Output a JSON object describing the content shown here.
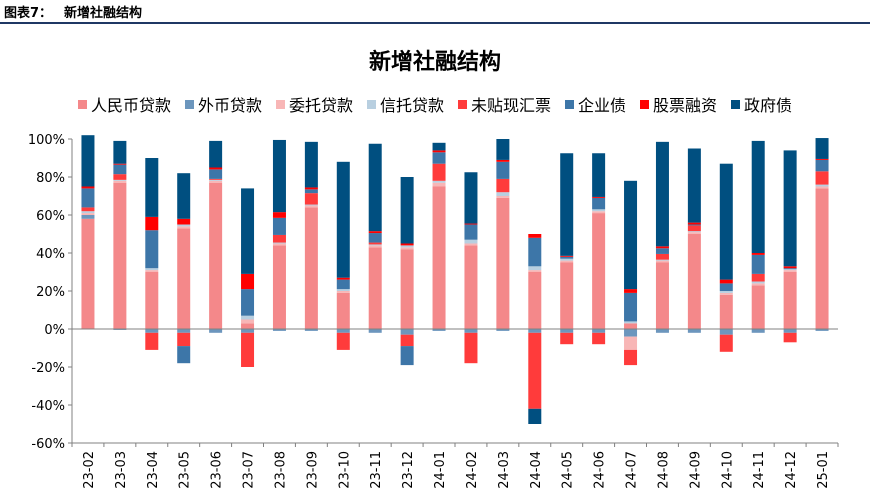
{
  "header": {
    "label": "图表7：",
    "title": "新增社融结构"
  },
  "chart_data": {
    "type": "bar",
    "stacked": true,
    "title": "新增社融结构",
    "categories": [
      "23-02",
      "23-03",
      "23-04",
      "23-05",
      "23-06",
      "23-07",
      "23-08",
      "23-09",
      "23-10",
      "23-11",
      "23-12",
      "24-01",
      "24-02",
      "24-03",
      "24-04",
      "24-05",
      "24-06",
      "24-07",
      "24-08",
      "24-09",
      "24-10",
      "24-11",
      "24-12",
      "25-01"
    ],
    "ylim": [
      -60,
      100
    ],
    "yticks": [
      -60,
      -40,
      -20,
      0,
      20,
      40,
      60,
      80,
      100
    ],
    "ytick_labels": [
      "-60%",
      "-40%",
      "-20%",
      "0%",
      "20%",
      "40%",
      "60%",
      "80%",
      "100%"
    ],
    "grid": false,
    "legend": "top",
    "series": [
      {
        "name": "人民币贷款",
        "color": "#f4888a",
        "values": [
          58,
          77,
          30,
          53,
          77,
          3,
          44,
          64,
          19,
          43,
          42,
          75,
          44,
          69,
          30,
          35,
          61,
          3,
          35,
          50,
          18,
          23,
          30,
          74
        ]
      },
      {
        "name": "外币贷款",
        "color": "#6c96bd",
        "values": [
          2,
          -0.5,
          -2,
          -2,
          -2,
          -2,
          -1,
          -1,
          -2,
          -2,
          -3,
          -1,
          -2,
          -1,
          -2,
          -2,
          -2,
          -4,
          -2,
          -2,
          -3,
          -2,
          -2,
          -1
        ]
      },
      {
        "name": "委托贷款",
        "color": "#f8b6b6",
        "values": [
          1,
          1,
          1,
          1,
          1,
          2,
          1,
          1,
          1,
          1,
          1,
          2,
          1,
          1,
          1,
          1,
          1,
          -7,
          1,
          1,
          1,
          1,
          1,
          1
        ]
      },
      {
        "name": "信托贷款",
        "color": "#b8cfe0",
        "values": [
          1,
          0.5,
          1,
          1,
          0.5,
          2,
          0.5,
          0.5,
          1,
          0.5,
          1,
          1,
          2,
          2,
          2,
          1,
          1,
          1,
          0.5,
          0.5,
          1,
          1,
          0.5,
          1
        ]
      },
      {
        "name": "未贴现汇票",
        "color": "#ff3b3b",
        "values": [
          2,
          3,
          -9,
          -7,
          0.5,
          -18,
          4,
          6,
          -9,
          1,
          -6,
          9,
          -16,
          7,
          -40,
          -6,
          -6,
          -8,
          3,
          3,
          -9,
          4,
          -5,
          7
        ]
      },
      {
        "name": "企业债",
        "color": "#3d76a8",
        "values": [
          10,
          5,
          20,
          -9,
          5,
          14,
          9,
          2,
          5,
          5,
          -10,
          6,
          8,
          9,
          15,
          1,
          6,
          15,
          3,
          0.5,
          4,
          10,
          0.5,
          6
        ]
      },
      {
        "name": "股票融资",
        "color": "#ff0000",
        "values": [
          1,
          0.5,
          7,
          3,
          1,
          8,
          3,
          1,
          1,
          1,
          1,
          1,
          0.5,
          1,
          2,
          0.5,
          0.5,
          2,
          1,
          1,
          2,
          1,
          1,
          0.5
        ]
      },
      {
        "name": "政府债",
        "color": "#004f80",
        "values": [
          27,
          12,
          31,
          24,
          14,
          45,
          38,
          24,
          61,
          46,
          35,
          4,
          27,
          11,
          -8,
          54,
          23,
          57,
          55,
          39,
          61,
          59,
          61,
          11
        ]
      }
    ]
  }
}
